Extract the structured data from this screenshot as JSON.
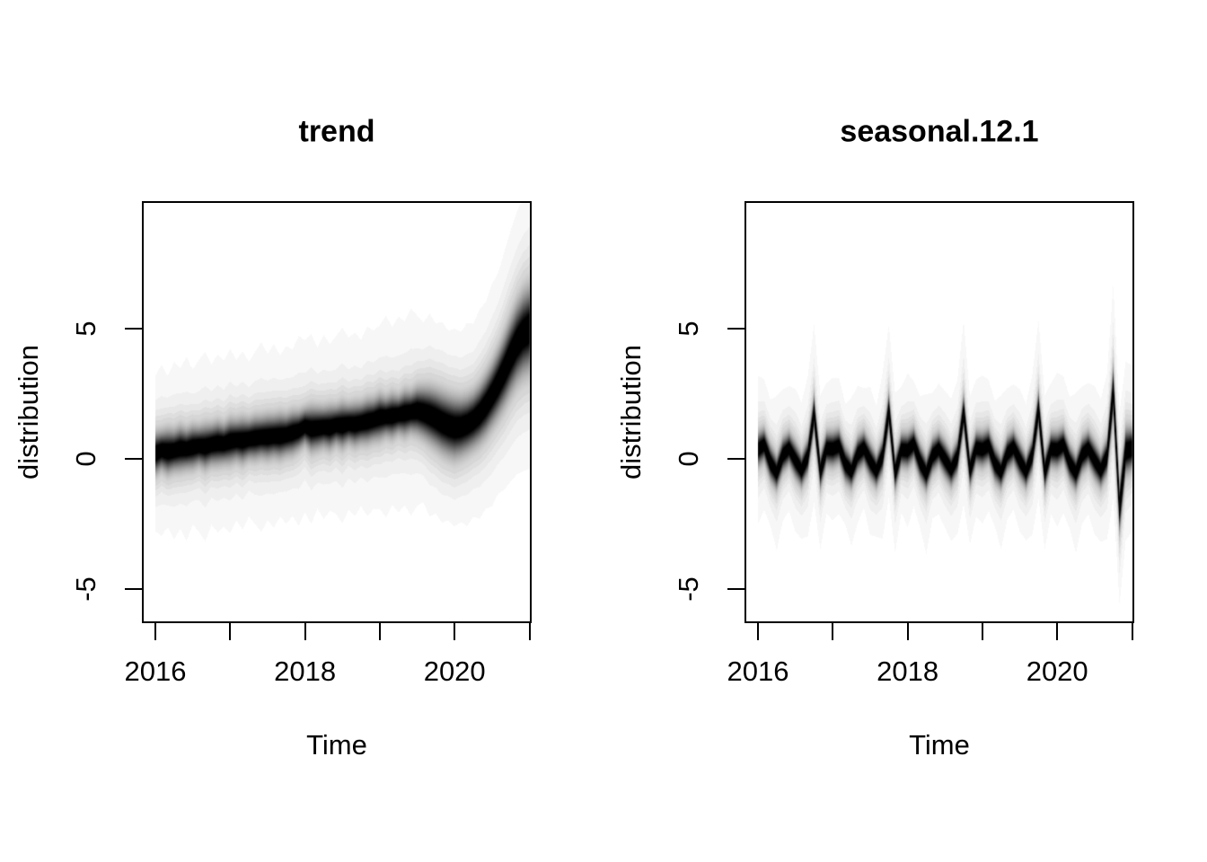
{
  "figure": {
    "background": "#ffffff",
    "text_color": "#000000"
  },
  "chart_data": [
    {
      "type": "heatmap",
      "subtype": "posterior-distribution-fan",
      "title": "trend",
      "xlabel": "Time",
      "ylabel": "distribution",
      "x_start": 2016.0,
      "x_step": 0.0833333,
      "n_points": 61,
      "xlim": [
        2015.82,
        2021.03
      ],
      "ylim": [
        -6.31,
        9.9
      ],
      "grid": false,
      "x_ticks": [
        {
          "v": 2016,
          "label": "2016"
        },
        {
          "v": 2017,
          "label": ""
        },
        {
          "v": 2018,
          "label": "2018"
        },
        {
          "v": 2019,
          "label": ""
        },
        {
          "v": 2020,
          "label": "2020"
        },
        {
          "v": 2021,
          "label": ""
        }
      ],
      "y_ticks": [
        {
          "v": -5,
          "label": "-5"
        },
        {
          "v": 0,
          "label": "0"
        },
        {
          "v": 5,
          "label": "5"
        }
      ],
      "center": [
        0.2,
        0.33,
        0.28,
        0.32,
        0.4,
        0.38,
        0.45,
        0.5,
        0.47,
        0.55,
        0.6,
        0.58,
        0.68,
        0.72,
        0.7,
        0.76,
        0.8,
        0.84,
        0.84,
        0.88,
        0.88,
        0.92,
        1.0,
        1.08,
        1.25,
        1.15,
        1.18,
        1.22,
        1.2,
        1.3,
        1.28,
        1.35,
        1.32,
        1.38,
        1.44,
        1.5,
        1.6,
        1.62,
        1.65,
        1.7,
        1.75,
        1.8,
        1.85,
        1.78,
        1.68,
        1.55,
        1.4,
        1.28,
        1.2,
        1.22,
        1.32,
        1.48,
        1.72,
        2.05,
        2.45,
        2.9,
        3.4,
        3.95,
        4.45,
        4.8,
        5.0
      ],
      "core_sd": [
        0.4,
        0.36,
        0.42,
        0.38,
        0.41,
        0.37,
        0.4,
        0.36,
        0.41,
        0.38,
        0.4,
        0.37,
        0.41,
        0.38,
        0.42,
        0.37,
        0.4,
        0.38,
        0.41,
        0.39,
        0.42,
        0.38,
        0.4,
        0.36,
        0.34,
        0.42,
        0.4,
        0.37,
        0.41,
        0.36,
        0.42,
        0.36,
        0.4,
        0.38,
        0.41,
        0.39,
        0.42,
        0.36,
        0.41,
        0.35,
        0.42,
        0.38,
        0.44,
        0.48,
        0.52,
        0.55,
        0.57,
        0.58,
        0.58,
        0.55,
        0.53,
        0.53,
        0.55,
        0.58,
        0.6,
        0.64,
        0.68,
        0.72,
        0.75,
        0.78,
        0.8
      ],
      "outer_sd": [
        1.3,
        1.45,
        1.25,
        1.5,
        1.35,
        1.55,
        1.3,
        1.45,
        1.6,
        1.35,
        1.5,
        1.4,
        1.55,
        1.35,
        1.5,
        1.3,
        1.45,
        1.6,
        1.4,
        1.55,
        1.35,
        1.5,
        1.4,
        1.6,
        1.45,
        1.6,
        1.35,
        1.55,
        1.4,
        1.5,
        1.65,
        1.45,
        1.55,
        1.4,
        1.6,
        1.5,
        1.55,
        1.7,
        1.5,
        1.65,
        1.55,
        1.75,
        1.6,
        1.5,
        1.7,
        1.55,
        1.65,
        1.5,
        1.6,
        1.55,
        1.7,
        1.6,
        1.75,
        1.7,
        1.85,
        1.8,
        1.95,
        2.05,
        2.15,
        2.25,
        2.3
      ],
      "shading": {
        "core_weight": 0.85,
        "mid_weight": 0.25,
        "outer_weight": 0.08,
        "quantize_below": 0.16,
        "quantize_step": 0.032,
        "min_visible": 0.006
      }
    },
    {
      "type": "heatmap",
      "subtype": "posterior-distribution-fan",
      "title": "seasonal.12.1",
      "xlabel": "Time",
      "ylabel": "distribution",
      "x_start": 2016.0,
      "x_step": 0.0833333,
      "n_points": 61,
      "xlim": [
        2015.82,
        2021.03
      ],
      "ylim": [
        -6.31,
        9.9
      ],
      "grid": false,
      "x_ticks": [
        {
          "v": 2016,
          "label": "2016"
        },
        {
          "v": 2017,
          "label": ""
        },
        {
          "v": 2018,
          "label": "2018"
        },
        {
          "v": 2019,
          "label": ""
        },
        {
          "v": 2020,
          "label": "2020"
        },
        {
          "v": 2021,
          "label": ""
        }
      ],
      "y_ticks": [
        {
          "v": -5,
          "label": "-5"
        },
        {
          "v": 0,
          "label": "0"
        },
        {
          "v": 5,
          "label": "5"
        }
      ],
      "center": [
        0.35,
        0.55,
        -0.15,
        -0.55,
        0.15,
        0.4,
        -0.05,
        -0.45,
        0.1,
        1.75,
        -0.5,
        0.4,
        0.38,
        0.5,
        -0.2,
        -0.5,
        0.18,
        0.42,
        -0.08,
        -0.48,
        0.12,
        1.85,
        -0.55,
        0.35,
        0.32,
        0.58,
        -0.12,
        -0.58,
        0.12,
        0.38,
        -0.02,
        -0.42,
        0.08,
        1.8,
        -0.45,
        0.42,
        0.36,
        0.52,
        -0.18,
        -0.52,
        0.2,
        0.45,
        -0.06,
        -0.5,
        0.15,
        1.9,
        -0.52,
        0.38,
        0.35,
        0.55,
        -0.15,
        -0.55,
        0.15,
        0.4,
        -0.05,
        -0.45,
        0.1,
        2.6,
        -1.9,
        0.3,
        0.4
      ],
      "core_sd": [
        0.33,
        0.31,
        0.34,
        0.32,
        0.33,
        0.31,
        0.34,
        0.32,
        0.33,
        0.36,
        0.34,
        0.32,
        0.33,
        0.32,
        0.34,
        0.31,
        0.33,
        0.32,
        0.34,
        0.31,
        0.33,
        0.36,
        0.34,
        0.32,
        0.33,
        0.31,
        0.34,
        0.32,
        0.33,
        0.31,
        0.34,
        0.32,
        0.33,
        0.36,
        0.34,
        0.32,
        0.33,
        0.32,
        0.34,
        0.31,
        0.33,
        0.32,
        0.34,
        0.31,
        0.33,
        0.37,
        0.35,
        0.33,
        0.34,
        0.32,
        0.34,
        0.33,
        0.34,
        0.33,
        0.35,
        0.33,
        0.35,
        0.5,
        0.5,
        0.45,
        0.4
      ],
      "outer_sd": [
        1.25,
        1.1,
        1.05,
        1.3,
        1.1,
        1.05,
        1.2,
        1.15,
        1.35,
        1.5,
        1.3,
        1.1,
        1.2,
        1.15,
        1.0,
        1.25,
        1.15,
        1.0,
        1.25,
        1.1,
        1.4,
        1.45,
        1.35,
        1.05,
        1.3,
        1.05,
        1.1,
        1.35,
        1.05,
        1.1,
        1.15,
        1.2,
        1.3,
        1.55,
        1.25,
        1.15,
        1.25,
        1.1,
        1.05,
        1.3,
        1.1,
        1.05,
        1.2,
        1.15,
        1.35,
        1.5,
        1.3,
        1.1,
        1.3,
        1.15,
        1.1,
        1.35,
        1.15,
        1.1,
        1.25,
        1.2,
        1.4,
        1.8,
        1.6,
        1.5,
        1.4
      ],
      "shading": {
        "core_weight": 0.85,
        "mid_weight": 0.25,
        "outer_weight": 0.08,
        "quantize_below": 0.16,
        "quantize_step": 0.032,
        "min_visible": 0.006
      }
    }
  ]
}
